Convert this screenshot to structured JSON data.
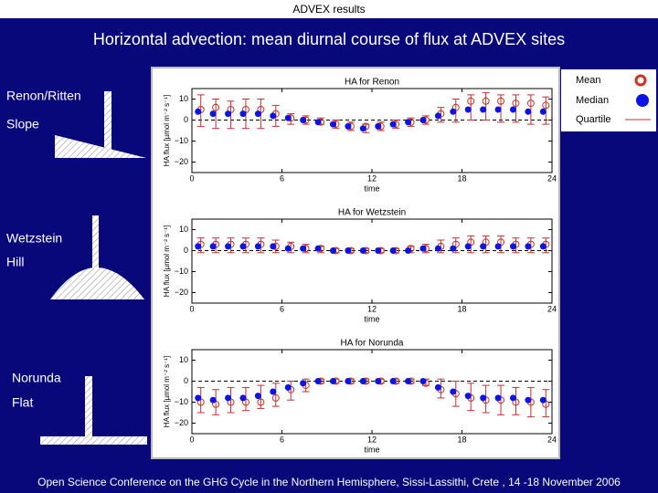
{
  "header": "ADVEX results",
  "title": "Horizontal advection: mean diurnal course of flux at ADVEX sites",
  "footer": "Open Science Conference on the GHG Cycle in the Northern Hemisphere, Sissi-Lassithi, Crete , 14 -18 November 2006",
  "site_labels": [
    "Renon/Ritten",
    "Slope",
    "Wetzstein",
    "Hill",
    "Norunda",
    "Flat"
  ],
  "chart_data": [
    {
      "type": "scatter",
      "title": "HA for Renon",
      "x_label": "time",
      "y_label": "HA flux [µmol m⁻² s⁻¹]",
      "xlim": [
        0,
        24
      ],
      "xticks": [
        0,
        6,
        12,
        18,
        24
      ],
      "ylim": [
        -25,
        15
      ],
      "yticks": [
        10,
        0,
        {
          "value": -10,
          "label": "−10"
        },
        {
          "value": -20,
          "label": "−20"
        }
      ],
      "x": [
        0.5,
        1.5,
        2.5,
        3.5,
        4.5,
        5.5,
        6.5,
        7.5,
        8.5,
        9.5,
        10.5,
        11.5,
        12.5,
        13.5,
        14.5,
        15.5,
        16.5,
        17.5,
        18.5,
        19.5,
        20.5,
        21.5,
        22.5,
        23.5
      ],
      "series": [
        {
          "name": "Mean",
          "color": "#d03020",
          "values": [
            5,
            6,
            5,
            5,
            5,
            3,
            1,
            0,
            -1,
            -2,
            -3,
            -3,
            -3,
            -2,
            -1,
            0,
            3,
            6,
            9,
            9,
            9,
            8,
            8,
            7
          ]
        },
        {
          "name": "Median",
          "color": "#0a14e6",
          "values": [
            4,
            3,
            3,
            3,
            3,
            2,
            1,
            0,
            -1,
            -2,
            -3,
            -4,
            -3,
            -2,
            -1,
            0,
            2,
            4,
            5,
            5,
            5,
            5,
            4,
            4
          ]
        },
        {
          "name": "Quartile",
          "color": "#c03030",
          "low": [
            -3,
            -4,
            -4,
            -4,
            -4,
            -3,
            -2,
            -2,
            -2,
            -4,
            -5,
            -6,
            -5,
            -4,
            -3,
            -2,
            -1,
            -1,
            0,
            0,
            -1,
            -1,
            -2,
            -2
          ],
          "high": [
            12,
            10,
            9,
            10,
            10,
            7,
            3,
            2,
            1,
            0,
            -1,
            -2,
            -1,
            0,
            1,
            2,
            6,
            10,
            12,
            13,
            12,
            12,
            12,
            11
          ]
        }
      ]
    },
    {
      "type": "scatter",
      "title": "HA for Wetzstein",
      "x_label": "time",
      "y_label": "HA flux [µmol m⁻² s⁻¹]",
      "xlim": [
        0,
        24
      ],
      "xticks": [
        0,
        6,
        12,
        18,
        24
      ],
      "ylim": [
        -25,
        15
      ],
      "yticks": [
        10,
        0,
        {
          "value": -10,
          "label": "−10"
        },
        {
          "value": -20,
          "label": "−20"
        }
      ],
      "x": [
        0.5,
        1.5,
        2.5,
        3.5,
        4.5,
        5.5,
        6.5,
        7.5,
        8.5,
        9.5,
        10.5,
        11.5,
        12.5,
        13.5,
        14.5,
        15.5,
        16.5,
        17.5,
        18.5,
        19.5,
        20.5,
        21.5,
        22.5,
        23.5
      ],
      "series": [
        {
          "color": "#d03020",
          "values": [
            3,
            3,
            3,
            3,
            3,
            2,
            2,
            1,
            1,
            0,
            0,
            0,
            0,
            0,
            1,
            1,
            2,
            3,
            4,
            4,
            4,
            3,
            3,
            3
          ]
        },
        {
          "color": "#0a14e6",
          "values": [
            2,
            2,
            2,
            2,
            2,
            2,
            1,
            1,
            1,
            0,
            0,
            0,
            0,
            0,
            0,
            1,
            1,
            1,
            2,
            2,
            2,
            2,
            2,
            2
          ]
        },
        {
          "color": "#c03030",
          "low": [
            -1,
            -1,
            -1,
            -1,
            -1,
            -1,
            -1,
            -1,
            -1,
            -1,
            -1,
            -1,
            -1,
            -1,
            -1,
            -1,
            -1,
            -1,
            -1,
            -1,
            -1,
            -1,
            -1,
            -1
          ],
          "high": [
            6,
            6,
            6,
            6,
            6,
            5,
            4,
            3,
            2,
            1,
            1,
            1,
            1,
            1,
            2,
            3,
            5,
            6,
            7,
            7,
            7,
            6,
            6,
            6
          ]
        }
      ]
    },
    {
      "type": "scatter",
      "title": "HA for Norunda",
      "x_label": "time",
      "y_label": "HA flux [µmol m⁻² s⁻¹]",
      "xlim": [
        0,
        24
      ],
      "xticks": [
        0,
        6,
        12,
        18,
        24
      ],
      "ylim": [
        -25,
        15
      ],
      "yticks": [
        10,
        0,
        {
          "value": -10,
          "label": "−10"
        },
        {
          "value": -20,
          "label": "−20"
        }
      ],
      "x": [
        0.5,
        1.5,
        2.5,
        3.5,
        4.5,
        5.5,
        6.5,
        7.5,
        8.5,
        9.5,
        10.5,
        11.5,
        12.5,
        13.5,
        14.5,
        15.5,
        16.5,
        17.5,
        18.5,
        19.5,
        20.5,
        21.5,
        22.5,
        23.5
      ],
      "series": [
        {
          "color": "#d03020",
          "values": [
            -10,
            -11,
            -10,
            -10,
            -10,
            -8,
            -4,
            -2,
            0,
            0,
            0,
            0,
            0,
            0,
            0,
            -1,
            -4,
            -6,
            -8,
            -9,
            -9,
            -10,
            -10,
            -11
          ]
        },
        {
          "color": "#0a14e6",
          "values": [
            -8,
            -9,
            -8,
            -8,
            -7,
            -5,
            -3,
            -1,
            0,
            0,
            0,
            0,
            0,
            0,
            0,
            0,
            -3,
            -5,
            -7,
            -8,
            -8,
            -8,
            -9,
            -9
          ]
        },
        {
          "color": "#c03030",
          "low": [
            -15,
            -16,
            -15,
            -14,
            -13,
            -12,
            -9,
            -5,
            -1,
            -1,
            -1,
            -1,
            -1,
            -1,
            -1,
            -2,
            -8,
            -12,
            -14,
            -15,
            -16,
            -16,
            -17,
            -17
          ],
          "high": [
            -3,
            -4,
            -3,
            -3,
            -2,
            -1,
            0,
            1,
            1,
            1,
            1,
            1,
            1,
            1,
            1,
            1,
            1,
            0,
            -1,
            -2,
            -2,
            -3,
            -3,
            -4
          ]
        }
      ]
    }
  ]
}
